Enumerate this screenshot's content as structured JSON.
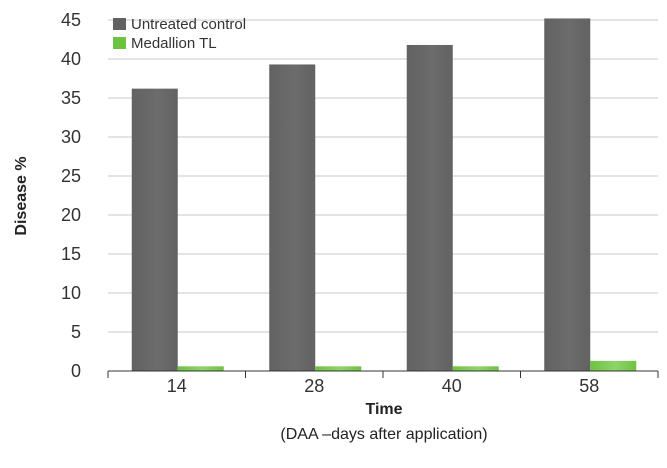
{
  "chart_data": {
    "type": "bar",
    "categories": [
      "14",
      "28",
      "40",
      "58"
    ],
    "series": [
      {
        "name": "Untreated control",
        "values": [
          36.2,
          39.3,
          41.8,
          45.2
        ],
        "color": "#626262"
      },
      {
        "name": "Medallion TL",
        "values": [
          0.6,
          0.6,
          0.6,
          1.3
        ],
        "color": "#6cc241"
      }
    ],
    "title": "",
    "xlabel": "Time",
    "xlabel_sub": "(DAA –days after application)",
    "ylabel": "Disease %",
    "ylim": [
      0,
      45
    ],
    "yticks": [
      0,
      5,
      10,
      15,
      20,
      25,
      30,
      35,
      40,
      45
    ],
    "grid": true,
    "legend": "top-left"
  }
}
